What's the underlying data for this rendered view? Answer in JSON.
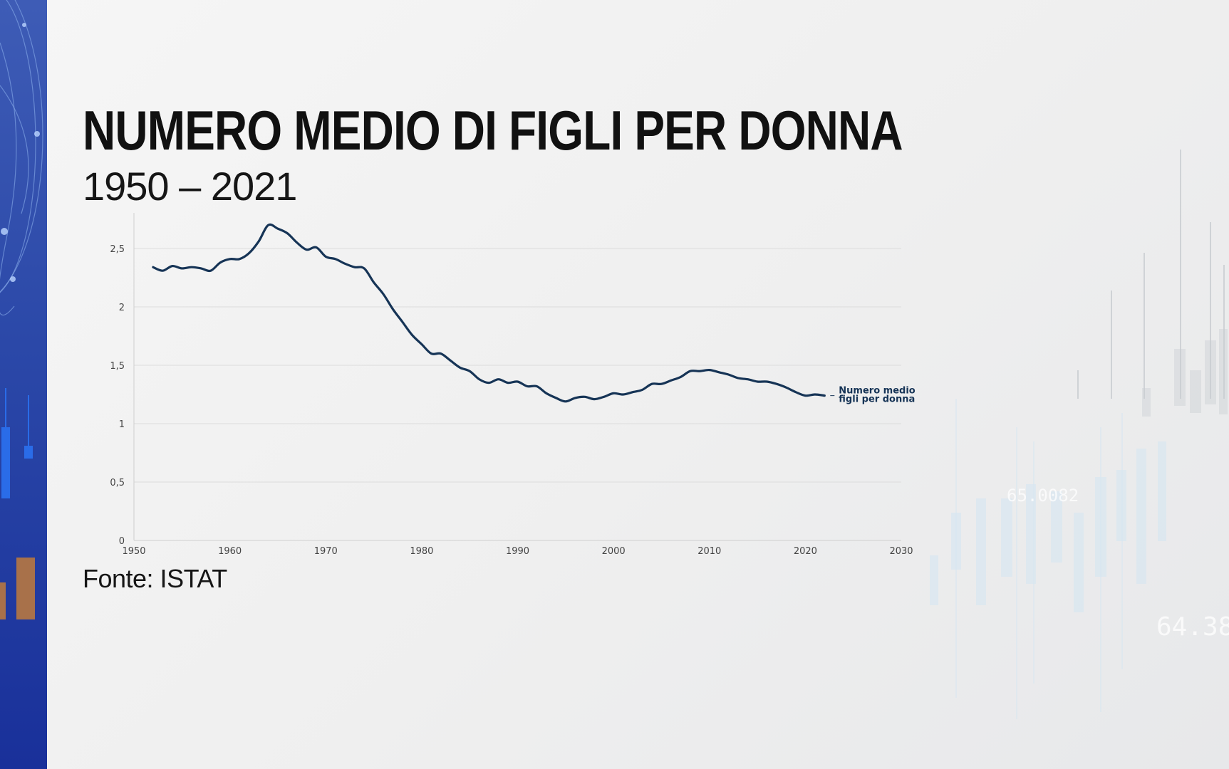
{
  "header": {
    "title": "NUMERO MEDIO DI FIGLI PER DONNA",
    "subtitle": "1950 – 2021"
  },
  "footer": {
    "source": "Fonte: ISTAT"
  },
  "colors": {
    "line": "#163456",
    "grid": "#dcdcdc",
    "axis_text": "#444444",
    "band": "#2b48a8"
  },
  "chart_data": {
    "type": "line",
    "title": "NUMERO MEDIO DI FIGLI PER DONNA",
    "subtitle": "1950 – 2021",
    "xlabel": "",
    "ylabel": "",
    "xlim": [
      1950,
      2030
    ],
    "ylim": [
      0,
      2.5
    ],
    "x_ticks": [
      "1950",
      "1960",
      "1970",
      "1980",
      "1990",
      "2000",
      "2010",
      "2020",
      "2030"
    ],
    "y_ticks": [
      "0",
      "0,5",
      "1",
      "1,5",
      "2",
      "2,5"
    ],
    "grid": true,
    "series": [
      {
        "name_lines": [
          "Numero medio",
          "figli per donna"
        ],
        "x": [
          1952,
          1953,
          1954,
          1955,
          1956,
          1957,
          1958,
          1959,
          1960,
          1961,
          1962,
          1963,
          1964,
          1965,
          1966,
          1967,
          1968,
          1969,
          1970,
          1971,
          1972,
          1973,
          1974,
          1975,
          1976,
          1977,
          1978,
          1979,
          1980,
          1981,
          1982,
          1983,
          1984,
          1985,
          1986,
          1987,
          1988,
          1989,
          1990,
          1991,
          1992,
          1993,
          1994,
          1995,
          1996,
          1997,
          1998,
          1999,
          2000,
          2001,
          2002,
          2003,
          2004,
          2005,
          2006,
          2007,
          2008,
          2009,
          2010,
          2011,
          2012,
          2013,
          2014,
          2015,
          2016,
          2017,
          2018,
          2019,
          2020,
          2021,
          2022
        ],
        "values": [
          2.34,
          2.31,
          2.35,
          2.33,
          2.34,
          2.33,
          2.31,
          2.38,
          2.41,
          2.41,
          2.46,
          2.56,
          2.7,
          2.67,
          2.63,
          2.55,
          2.49,
          2.51,
          2.43,
          2.41,
          2.37,
          2.34,
          2.33,
          2.21,
          2.11,
          1.98,
          1.87,
          1.76,
          1.68,
          1.6,
          1.6,
          1.54,
          1.48,
          1.45,
          1.38,
          1.35,
          1.38,
          1.35,
          1.36,
          1.32,
          1.32,
          1.26,
          1.22,
          1.19,
          1.22,
          1.23,
          1.21,
          1.23,
          1.26,
          1.25,
          1.27,
          1.29,
          1.34,
          1.34,
          1.37,
          1.4,
          1.45,
          1.45,
          1.46,
          1.44,
          1.42,
          1.39,
          1.38,
          1.36,
          1.36,
          1.34,
          1.31,
          1.27,
          1.24,
          1.25,
          1.24
        ]
      }
    ]
  }
}
